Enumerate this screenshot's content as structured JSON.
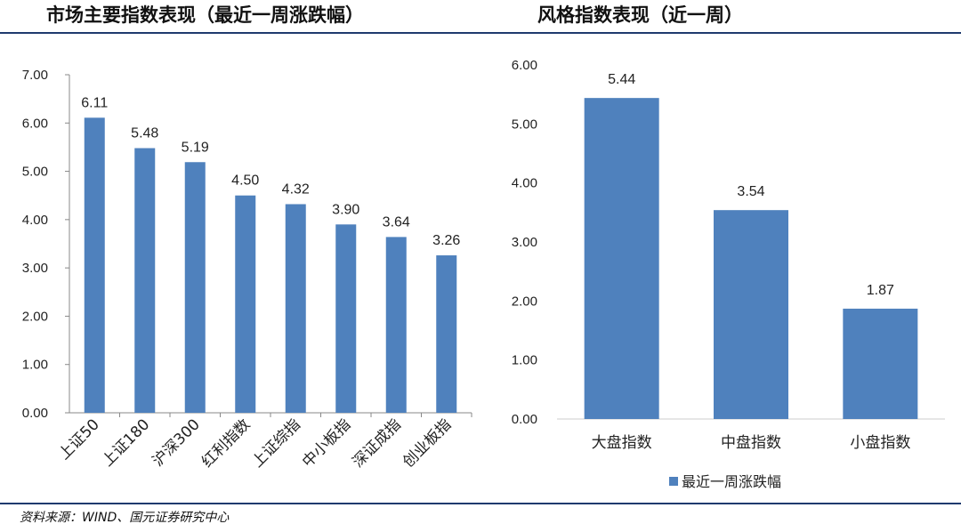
{
  "charts": {
    "left_title": "市场主要指数表现（最近一周涨跌幅）",
    "right_title": "风格指数表现（近一周）"
  },
  "source": "资料来源：WIND、国元证券研究中心",
  "colors": {
    "bar": "#4f81bd",
    "rule": "#1f3a6e",
    "axis": "#888888"
  },
  "chart_data": [
    {
      "type": "bar",
      "title": "市场主要指数表现（最近一周涨跌幅）",
      "categories": [
        "上证50",
        "上证180",
        "沪深300",
        "红利指数",
        "上证综指",
        "中小板指",
        "深证成指",
        "创业板指"
      ],
      "values": [
        6.11,
        5.48,
        5.19,
        4.5,
        4.32,
        3.9,
        3.64,
        3.26
      ],
      "value_labels": [
        "6.11",
        "5.48",
        "5.19",
        "4.50",
        "4.32",
        "3.90",
        "3.64",
        "3.26"
      ],
      "yticks": [
        "0.00",
        "1.00",
        "2.00",
        "3.00",
        "4.00",
        "5.00",
        "6.00",
        "7.00"
      ],
      "ylim": [
        0,
        7
      ],
      "legend": null,
      "grid": false
    },
    {
      "type": "bar",
      "title": "风格指数表现（近一周）",
      "categories": [
        "大盘指数",
        "中盘指数",
        "小盘指数"
      ],
      "values": [
        5.44,
        3.54,
        1.87
      ],
      "value_labels": [
        "5.44",
        "3.54",
        "1.87"
      ],
      "yticks": [
        "0.00",
        "1.00",
        "2.00",
        "3.00",
        "4.00",
        "5.00",
        "6.00"
      ],
      "ylim": [
        0,
        6
      ],
      "series": [
        {
          "name": "最近一周涨跌幅",
          "values": [
            5.44,
            3.54,
            1.87
          ]
        }
      ],
      "legend": "bottom",
      "grid": false
    }
  ]
}
